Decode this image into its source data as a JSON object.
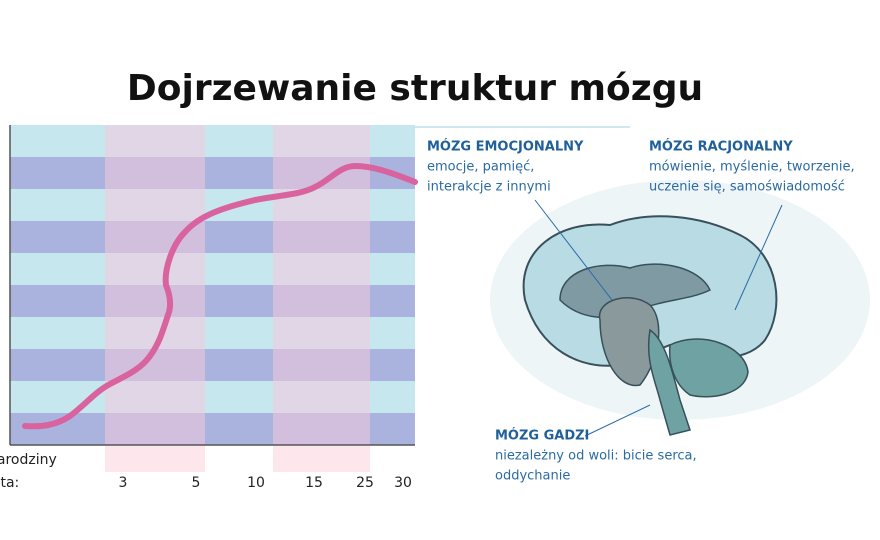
{
  "header": {
    "title": "Dojrzewanie struktur mózgu"
  },
  "axis": {
    "birth_label": "narodziny",
    "years_label": "lata:",
    "ticks": [
      "3",
      "5",
      "10",
      "15",
      "25",
      "30"
    ]
  },
  "annotations": [
    {
      "title": "MÓZG EMOCJONALNY",
      "lines": [
        "emocje, pamięć,",
        "interakcje z innymi"
      ]
    },
    {
      "title": "MÓZG RACJONALNY",
      "lines": [
        "mówienie, myślenie, tworzenie,",
        "uczenie się, samoświadomość"
      ]
    },
    {
      "title": "MÓZG GADZI",
      "lines": [
        "niezależny od woli: bicie serca,",
        "oddychanie"
      ]
    }
  ]
}
